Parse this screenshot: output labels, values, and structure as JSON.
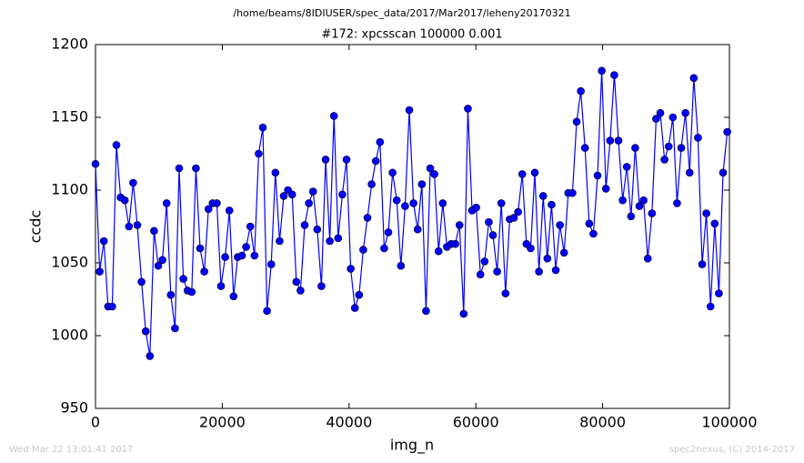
{
  "chart_data": {
    "type": "line",
    "suptitle": "/home/beams/8IDIUSER/spec_data/2017/Mar2017/leheny20170321",
    "title": "#172: xpcsscan 100000 0.001",
    "xlabel": "img_n",
    "ylabel": "ccdc",
    "footer_left": "Wed Mar 22 13:01:41 2017",
    "footer_right": "spec2nexus, (C) 2014-2017",
    "xlim": [
      0,
      100000
    ],
    "xticks": [
      0,
      20000,
      40000,
      60000,
      80000,
      100000
    ],
    "ylim": [
      950,
      1200
    ],
    "yticks": [
      950,
      1000,
      1050,
      1100,
      1150,
      1200
    ],
    "x": [
      0,
      660,
      1320,
      1980,
      2640,
      3300,
      3960,
      4620,
      5280,
      5940,
      6600,
      7260,
      7920,
      8580,
      9240,
      9900,
      10560,
      11220,
      11880,
      12540,
      13200,
      13860,
      14520,
      15180,
      15840,
      16500,
      17160,
      17820,
      18480,
      19140,
      19800,
      20460,
      21120,
      21780,
      22440,
      23100,
      23760,
      24420,
      25080,
      25740,
      26400,
      27060,
      27720,
      28380,
      29040,
      29700,
      30360,
      31020,
      31680,
      32340,
      33000,
      33660,
      34320,
      34980,
      35640,
      36300,
      36960,
      37620,
      38280,
      38940,
      39600,
      40260,
      40920,
      41580,
      42240,
      42900,
      43560,
      44220,
      44880,
      45540,
      46200,
      46860,
      47520,
      48180,
      48840,
      49500,
      50160,
      50820,
      51480,
      52140,
      52800,
      53460,
      54120,
      54780,
      55440,
      56100,
      56760,
      57420,
      58080,
      58740,
      59400,
      60060,
      60720,
      61380,
      62040,
      62700,
      63360,
      64020,
      64680,
      65340,
      66000,
      66660,
      67320,
      67980,
      68640,
      69300,
      69960,
      70620,
      71280,
      71940,
      72600,
      73260,
      73920,
      74580,
      75240,
      75900,
      76560,
      77220,
      77880,
      78540,
      79200,
      79860,
      80520,
      81180,
      81840,
      82500,
      83160,
      83820,
      84480,
      85140,
      85800,
      86460,
      87120,
      87780,
      88440,
      89100,
      89760,
      90420,
      91080,
      91740,
      92400,
      93060,
      93720,
      94380,
      95040,
      95700,
      96360,
      97020,
      97680,
      98340,
      99000,
      99660
    ],
    "series": [
      {
        "color": "#0000ff",
        "values": [
          1118,
          1044,
          1065,
          1020,
          1020,
          1131,
          1095,
          1093,
          1075,
          1105,
          1076,
          1037,
          1003,
          986,
          1072,
          1048,
          1052,
          1091,
          1028,
          1005,
          1115,
          1039,
          1031,
          1030,
          1115,
          1060,
          1044,
          1087,
          1091,
          1091,
          1034,
          1054,
          1086,
          1027,
          1054,
          1055,
          1061,
          1075,
          1055,
          1125,
          1143,
          1017,
          1049,
          1112,
          1065,
          1096,
          1100,
          1097,
          1037,
          1031,
          1076,
          1091,
          1099,
          1073,
          1034,
          1121,
          1065,
          1151,
          1067,
          1097,
          1121,
          1046,
          1019,
          1028,
          1059,
          1081,
          1104,
          1120,
          1133,
          1060,
          1071,
          1112,
          1093,
          1048,
          1089,
          1155,
          1091,
          1073,
          1104,
          1017,
          1115,
          1111,
          1058,
          1091,
          1061,
          1063,
          1063,
          1076,
          1015,
          1156,
          1086,
          1088,
          1042,
          1051,
          1078,
          1069,
          1044,
          1091,
          1029,
          1080,
          1081,
          1085,
          1111,
          1063,
          1060,
          1112,
          1044,
          1096,
          1053,
          1090,
          1045,
          1076,
          1057,
          1098,
          1098,
          1147,
          1168,
          1129,
          1077,
          1070,
          1110,
          1182,
          1101,
          1134,
          1179,
          1134,
          1093,
          1116,
          1082,
          1129,
          1089,
          1093,
          1053,
          1084,
          1149,
          1153,
          1121,
          1130,
          1150,
          1091,
          1129,
          1153,
          1112,
          1177,
          1136,
          1049,
          1084,
          1020,
          1077,
          1029,
          1112,
          1140
        ]
      }
    ]
  }
}
